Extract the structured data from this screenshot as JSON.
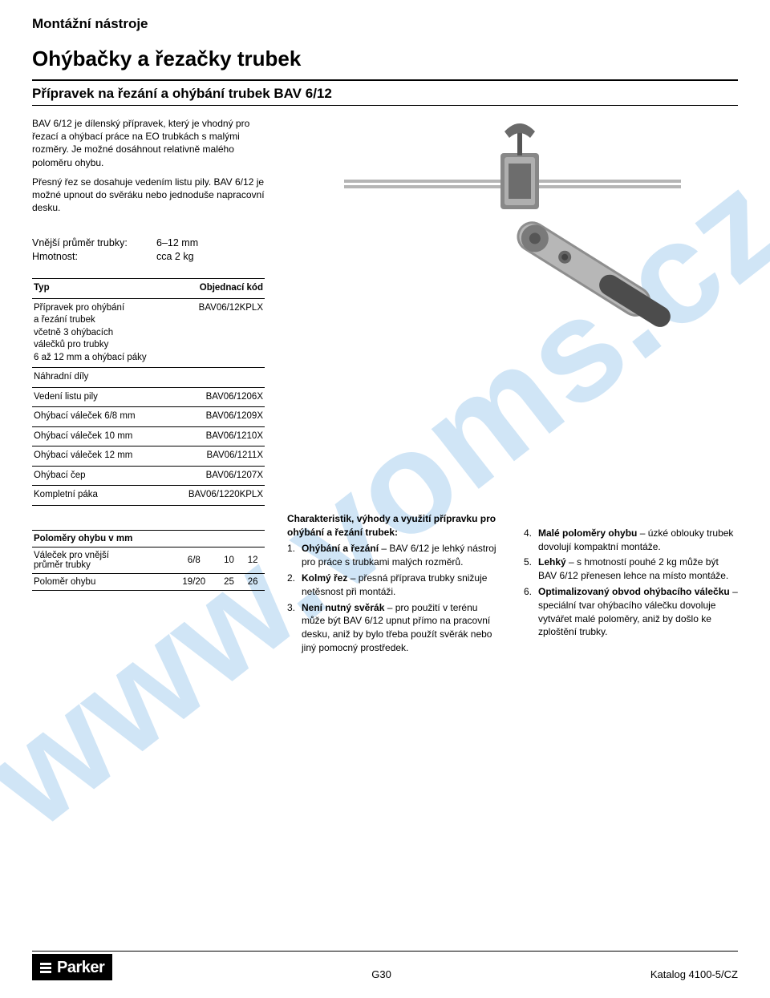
{
  "watermark": "www.voms.cz",
  "section_label": "Montážní nástroje",
  "main_title": "Ohýbačky a řezačky trubek",
  "subtitle": "Přípravek na řezání a ohýbání trubek BAV 6/12",
  "intro_p1": "BAV 6/12 je dílenský přípravek, který je vhodný pro řezací a ohýbací práce na EO trubkách s malými rozměry. Je možné dosáhnout relativně malého poloměru ohybu.",
  "intro_p2": "Přesný řez se dosahuje vedením listu pily. BAV 6/12 je možné upnout do svěráku nebo jednoduše napracovní desku.",
  "spec1_label": "Vnější průměr trubky:",
  "spec1_val": "6–12 mm",
  "spec2_label": "Hmotnost:",
  "spec2_val": "cca 2 kg",
  "tbl1_h1": "Typ",
  "tbl1_h2": "Objednací kód",
  "tbl1_rows": [
    {
      "name": "Přípravek pro ohýbání\na řezání trubek\nvčetně 3 ohýbacích\nválečků pro trubky\n6 až 12 mm a ohýbací páky",
      "code": "BAV06/12KPLX"
    },
    {
      "name": "Náhradní díly",
      "code": ""
    },
    {
      "name": "Vedení listu pily",
      "code": "BAV06/1206X"
    },
    {
      "name": "Ohýbací váleček 6/8 mm",
      "code": "BAV06/1209X"
    },
    {
      "name": "Ohýbací váleček 10 mm",
      "code": "BAV06/1210X"
    },
    {
      "name": "Ohýbací váleček 12 mm",
      "code": "BAV06/1211X"
    },
    {
      "name": "Ohýbací čep",
      "code": "BAV06/1207X"
    },
    {
      "name": "Kompletní páka",
      "code": "BAV06/1220KPLX"
    }
  ],
  "tbl2_title": "Poloměry ohybu v mm",
  "tbl2_r1_label": "Váleček pro vnější\nprůměr trubky",
  "tbl2_r1_v1": "6/8",
  "tbl2_r1_v2": "10",
  "tbl2_r1_v3": "12",
  "tbl2_r2_label": "Poloměr ohybu",
  "tbl2_r2_v1": "19/20",
  "tbl2_r2_v2": "25",
  "tbl2_r2_v3": "26",
  "benefits_title1": "Charakteristik, výhody a využití přípravku pro ohýbání a řezání trubek:",
  "benefits_a": [
    {
      "n": "1.",
      "b": "Ohýbání a řezání",
      "t": " – BAV 6/12 je lehký nástroj pro práce s trubkami malých rozměrů."
    },
    {
      "n": "2.",
      "b": "Kolmý řez",
      "t": " – přesná příprava trubky snižuje netěsnost při montáži."
    },
    {
      "n": "3.",
      "b": "Není nutný svěrák",
      "t": " – pro použití v terénu může být BAV 6/12 upnut přímo na pracovní desku, aniž by bylo třeba použít svěrák nebo jiný pomocný prostředek."
    }
  ],
  "benefits_b": [
    {
      "n": "4.",
      "b": "Malé poloměry ohybu",
      "t": " – úzké oblouky trubek dovolují kompaktní montáže."
    },
    {
      "n": "5.",
      "b": "Lehký",
      "t": " – s hmotností pouhé 2 kg může být BAV 6/12 přenesen lehce na místo montáže."
    },
    {
      "n": "6.",
      "b": "Optimalizovaný obvod ohýbacího válečku",
      "t": " – speciální tvar ohýbacího válečku dovoluje vytvářet malé poloměry, aniž by došlo ke zploštění trubky."
    }
  ],
  "logo_text": "Parker",
  "page_number": "G30",
  "catalog": "Katalog 4100-5/CZ"
}
